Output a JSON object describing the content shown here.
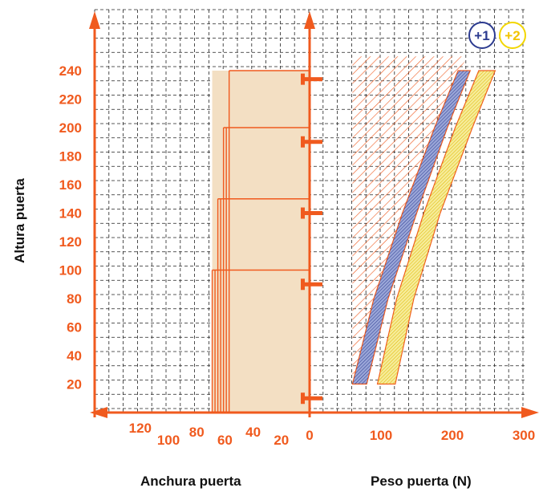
{
  "labels": {
    "y_axis": "Altura puerta",
    "x_axis_left": "Anchura puerta",
    "x_axis_right": "Peso puerta (N)",
    "band1": "+1",
    "band2": "+2"
  },
  "colors": {
    "accent": "#f05a1e",
    "fill": "#f3dfc3",
    "grid": "#222222",
    "band1": "#2b3a8f",
    "band2": "#f2d600"
  },
  "chart_data": {
    "type": "diagram",
    "y_ticks": [
      "20",
      "40",
      "60",
      "80",
      "100",
      "120",
      "140",
      "160",
      "180",
      "200",
      "220",
      "240"
    ],
    "x_ticks_left": [
      "120",
      "100",
      "80",
      "60",
      "40",
      "20",
      "0"
    ],
    "x_ticks_right": [
      "100",
      "200",
      "300"
    ],
    "door_heights": [
      100,
      150,
      200,
      240
    ],
    "door_markers_height": [
      10,
      90,
      140,
      190,
      234
    ],
    "width_lines": [
      57,
      59,
      61,
      63,
      65,
      67,
      69
    ],
    "region_hatched": {
      "weight_from": 60,
      "height_from": 20,
      "height_to": 250
    },
    "band_plus1": {
      "left": [
        [
          60,
          20
        ],
        [
          90,
          80
        ],
        [
          130,
          140
        ],
        [
          175,
          200
        ],
        [
          208,
          240
        ]
      ],
      "right": [
        [
          80,
          20
        ],
        [
          110,
          80
        ],
        [
          150,
          140
        ],
        [
          193,
          200
        ],
        [
          225,
          240
        ]
      ]
    },
    "band_plus2": {
      "left": [
        [
          95,
          20
        ],
        [
          122,
          80
        ],
        [
          160,
          140
        ],
        [
          204,
          200
        ],
        [
          237,
          240
        ]
      ],
      "right": [
        [
          120,
          20
        ],
        [
          146,
          80
        ],
        [
          183,
          140
        ],
        [
          228,
          200
        ],
        [
          260,
          240
        ]
      ]
    }
  }
}
